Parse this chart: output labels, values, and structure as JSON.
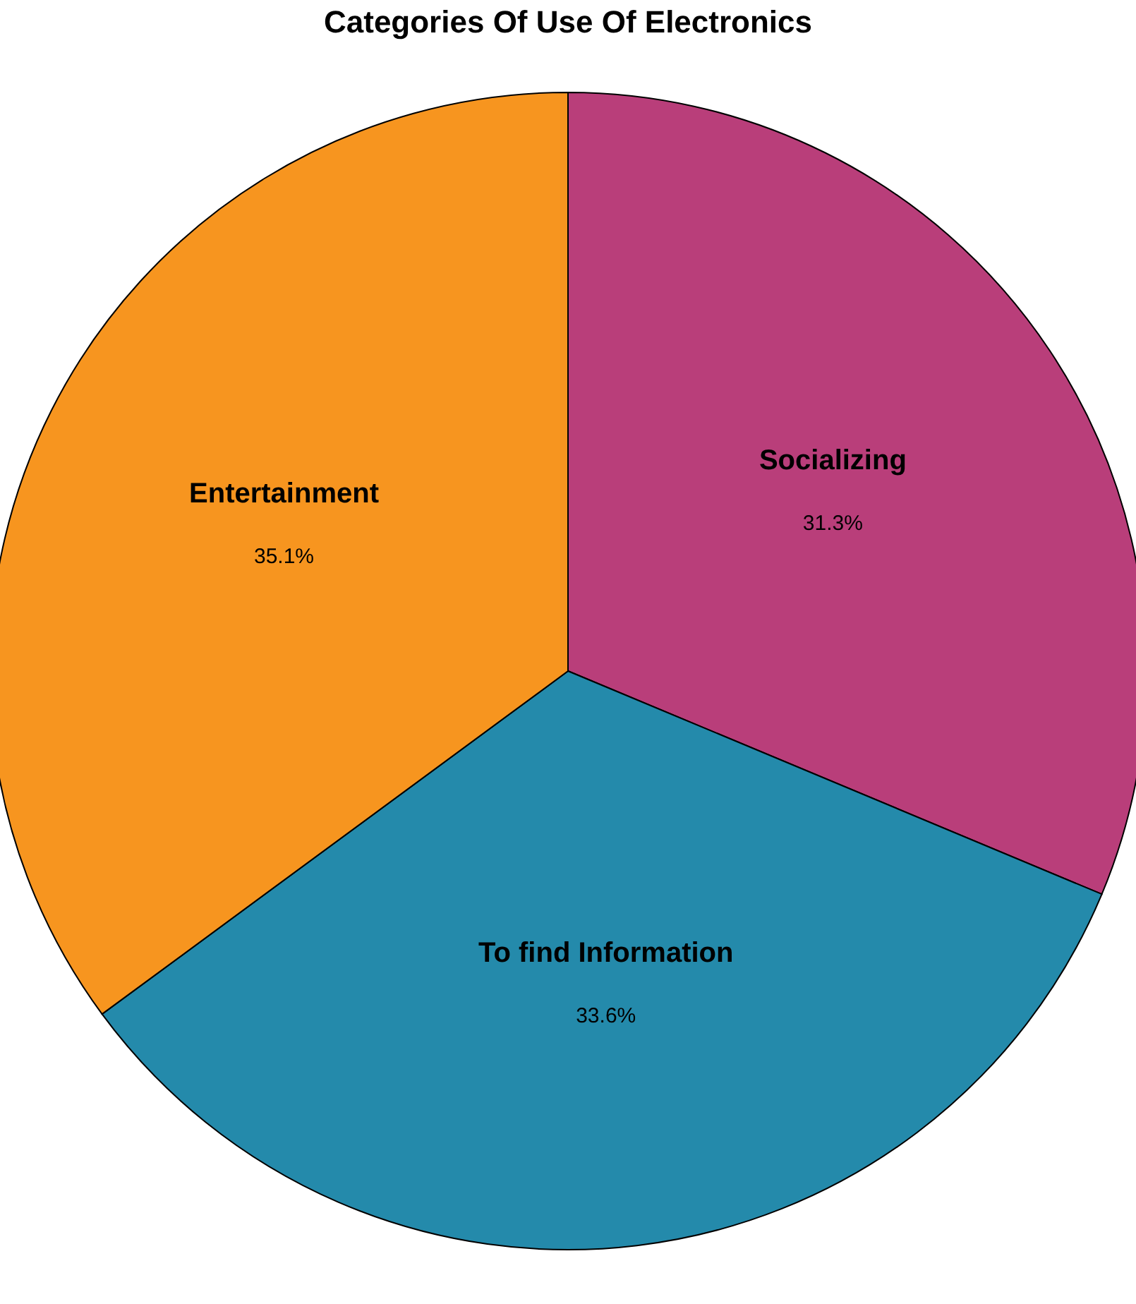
{
  "chart_data": {
    "type": "pie",
    "title": "Categories Of Use Of Electronics",
    "categories": [
      "Socializing",
      "To find Information",
      "Entertainment"
    ],
    "values": [
      31.3,
      33.6,
      35.1
    ],
    "colors": [
      "#b93e7a",
      "#248aab",
      "#f7951f"
    ],
    "value_labels": [
      "31.3%",
      "33.6%",
      "35.1%"
    ]
  }
}
